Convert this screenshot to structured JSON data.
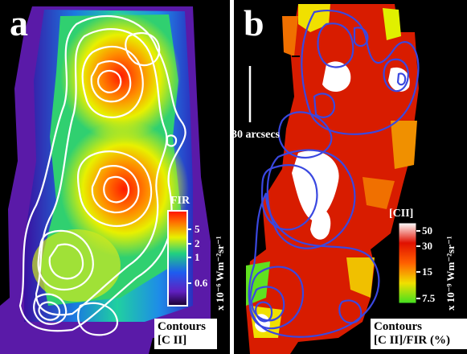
{
  "panel_a": {
    "letter": "a",
    "colorbar": {
      "title": "FIR",
      "ticks": [
        "5",
        "2",
        "1",
        "0.6"
      ],
      "unit": "x 10⁻⁶ Wm⁻²sr⁻¹"
    },
    "contour_label_line1": "Contours",
    "contour_label_line2": "[C II]",
    "contour_color": "#ffffff"
  },
  "panel_b": {
    "letter": "b",
    "scale_bar_label": "30 arcsecs",
    "colorbar": {
      "title": "[CII]",
      "ticks": [
        "50",
        "30",
        "15",
        "7.5"
      ],
      "unit": "x 10⁻⁹ Wm⁻²sr⁻¹"
    },
    "contour_label_line1": "Contours",
    "contour_label_line2": "[C II]/FIR (%)",
    "contour_color": "#3a48e0"
  }
}
